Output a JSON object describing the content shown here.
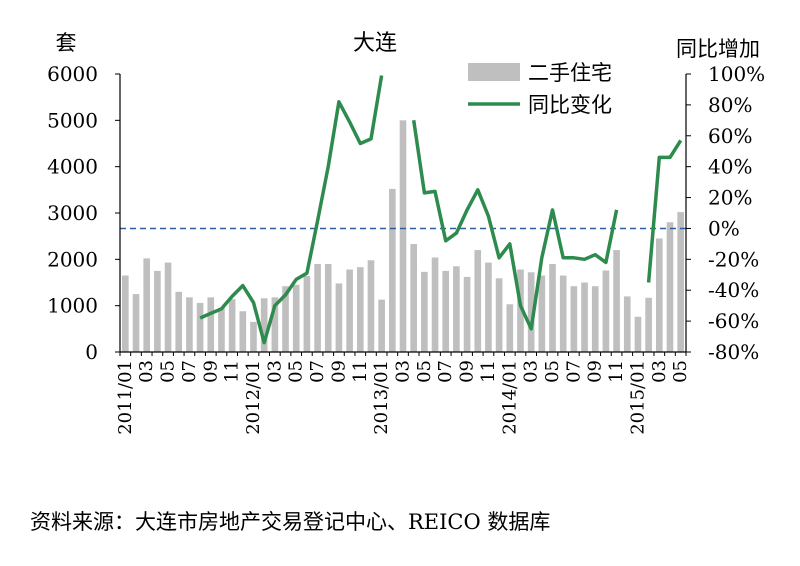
{
  "chart_data": {
    "type": "bar",
    "title": "大连",
    "ylabel_left": "套",
    "ylabel_right": "同比增加",
    "y_left_range": [
      0,
      6000
    ],
    "y_left_ticks": [
      "0",
      "1000",
      "2000",
      "3000",
      "4000",
      "5000",
      "6000"
    ],
    "y_right_range": [
      -0.8,
      1.0
    ],
    "y_right_ticks": [
      "-80%",
      "-60%",
      "-40%",
      "-20%",
      "0%",
      "20%",
      "40%",
      "60%",
      "80%",
      "100%"
    ],
    "x_tick_labels": [
      "2011/01",
      "03",
      "05",
      "07",
      "09",
      "11",
      "2012/01",
      "03",
      "05",
      "07",
      "09",
      "11",
      "2013/01",
      "03",
      "05",
      "07",
      "09",
      "11",
      "2014/01",
      "03",
      "05",
      "07",
      "09",
      "11",
      "2015/01",
      "03",
      "05"
    ],
    "legend_position": "top-right",
    "zero_reference_line": "dashed",
    "colors": {
      "bars": "#bfbfbf",
      "line": "#2e8b4e",
      "reference": "#2e5fa3"
    },
    "series": [
      {
        "name": "二手住宅",
        "kind": "bar",
        "axis": "left",
        "values": [
          1650,
          1250,
          2020,
          1750,
          1930,
          1300,
          1180,
          1060,
          1180,
          960,
          1140,
          880,
          650,
          1160,
          1180,
          1420,
          1450,
          1640,
          1900,
          1900,
          1480,
          1780,
          1830,
          1980,
          1130,
          3520,
          5000,
          2330,
          1730,
          2040,
          1750,
          1850,
          1620,
          2200,
          1930,
          1590,
          1030,
          1780,
          1720,
          1650,
          1900,
          1650,
          1420,
          1500,
          1420,
          1760,
          2200,
          1200,
          760,
          1170,
          2450,
          2800,
          3020
        ]
      },
      {
        "name": "同比变化",
        "kind": "line",
        "axis": "right",
        "values": [
          null,
          null,
          null,
          null,
          null,
          null,
          null,
          -0.58,
          -0.55,
          -0.52,
          -0.44,
          -0.37,
          -0.48,
          -0.74,
          -0.5,
          -0.43,
          -0.33,
          -0.29,
          0.05,
          0.4,
          0.82,
          0.69,
          0.55,
          0.58,
          0.99,
          null,
          null,
          0.7,
          0.23,
          0.24,
          -0.08,
          -0.03,
          0.12,
          0.25,
          0.08,
          -0.19,
          -0.1,
          -0.5,
          -0.65,
          -0.19,
          0.12,
          -0.19,
          -0.19,
          -0.2,
          -0.17,
          -0.22,
          0.12,
          null,
          null,
          -0.35,
          0.46,
          0.46,
          0.57
        ]
      }
    ]
  },
  "source": "资料来源：大连市房地产交易登记中心、REICO 数据库"
}
